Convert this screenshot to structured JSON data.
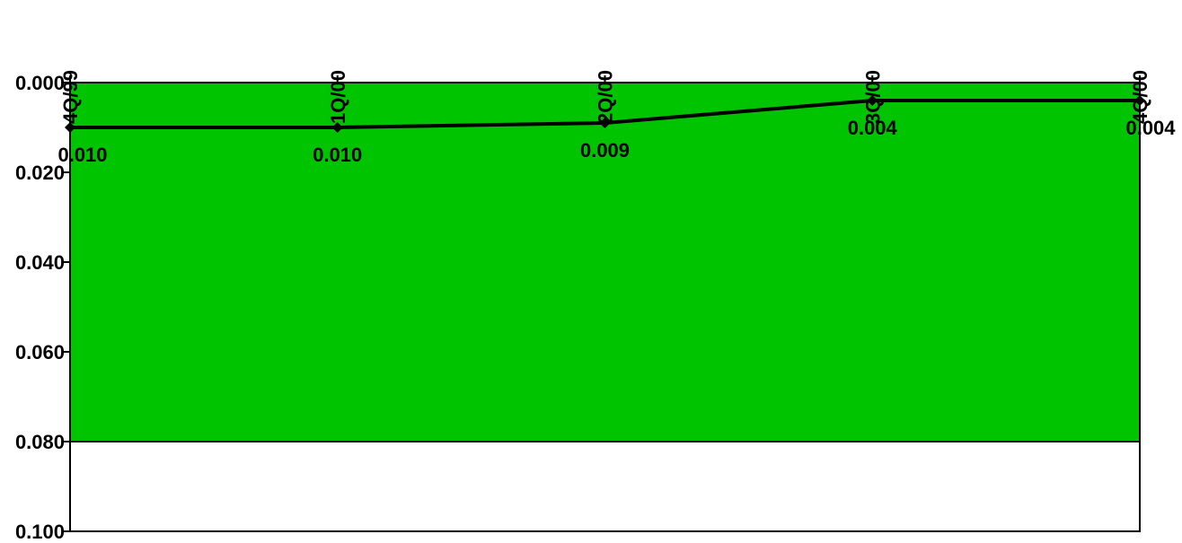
{
  "chart_data": {
    "type": "line",
    "title": "",
    "xlabel": "",
    "ylabel": "",
    "categories": [
      "4Q/99",
      "1Q/00",
      "2Q/00",
      "3Q/00",
      "4Q/00"
    ],
    "series": [
      {
        "values": [
          0.01,
          0.01,
          0.009,
          0.004,
          0.004
        ]
      }
    ],
    "data_labels": [
      "0.010",
      "0.010",
      "0.009",
      "0.004",
      "0.004"
    ],
    "y_ticks": [
      "0.000",
      "0.020",
      "0.040",
      "0.060",
      "0.080",
      "0.100"
    ],
    "ylim": [
      0.0,
      0.1
    ],
    "y_axis_inverted": true,
    "x_axis_position": "top",
    "x_labels_rotated": true,
    "shaded_band": {
      "from": 0.0,
      "to": 0.08,
      "color": "#00c400"
    },
    "line_color": "#000000",
    "grid": false,
    "legend": "none"
  }
}
